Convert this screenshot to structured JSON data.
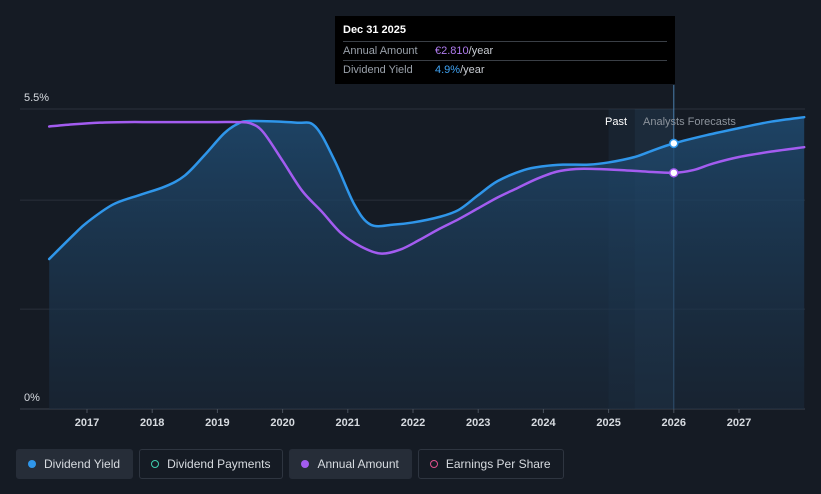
{
  "tooltip": {
    "date": "Dec 31 2025",
    "rows": [
      {
        "label": "Annual Amount",
        "value": "€2.810",
        "unit": "/year"
      },
      {
        "label": "Dividend Yield",
        "value": "4.9%",
        "unit": "/year"
      }
    ]
  },
  "labels": {
    "past": "Past",
    "forecast": "Analysts Forecasts"
  },
  "legend": [
    {
      "label": "Dividend Yield",
      "active": true,
      "color": "#2f96ea"
    },
    {
      "label": "Dividend Payments",
      "active": false,
      "color": "#3fd0b0"
    },
    {
      "label": "Annual Amount",
      "active": true,
      "color": "#a35cf0"
    },
    {
      "label": "Earnings Per Share",
      "active": false,
      "color": "#e0508c"
    }
  ],
  "chart_data": {
    "type": "line",
    "y_tick_labels": [
      "5.5%",
      "0%"
    ],
    "x_tick_labels": [
      "2017",
      "2018",
      "2019",
      "2020",
      "2021",
      "2022",
      "2023",
      "2024",
      "2025",
      "2026",
      "2027"
    ],
    "ylim": [
      0,
      5.5
    ],
    "xlim": [
      2016.4,
      2028.0
    ],
    "forecast_start": 2025.4,
    "highlight_x": 2026.0,
    "gridlines": [
      5.5,
      3.83,
      1.83,
      0
    ],
    "series": [
      {
        "name": "Dividend Yield",
        "color": "#2f96ea",
        "fill": true,
        "points": [
          [
            2016.42,
            2.75
          ],
          [
            2016.8,
            3.2
          ],
          [
            2017.0,
            3.42
          ],
          [
            2017.4,
            3.75
          ],
          [
            2017.8,
            3.92
          ],
          [
            2018.2,
            4.08
          ],
          [
            2018.5,
            4.28
          ],
          [
            2018.8,
            4.65
          ],
          [
            2019.1,
            5.05
          ],
          [
            2019.3,
            5.22
          ],
          [
            2019.5,
            5.28
          ],
          [
            2020.2,
            5.25
          ],
          [
            2020.5,
            5.18
          ],
          [
            2020.8,
            4.55
          ],
          [
            2021.1,
            3.75
          ],
          [
            2021.35,
            3.38
          ],
          [
            2021.7,
            3.38
          ],
          [
            2022.0,
            3.42
          ],
          [
            2022.4,
            3.52
          ],
          [
            2022.7,
            3.65
          ],
          [
            2023.0,
            3.92
          ],
          [
            2023.3,
            4.18
          ],
          [
            2023.7,
            4.38
          ],
          [
            2024.0,
            4.45
          ],
          [
            2024.3,
            4.48
          ],
          [
            2024.7,
            4.48
          ],
          [
            2025.0,
            4.52
          ],
          [
            2025.4,
            4.62
          ],
          [
            2025.7,
            4.75
          ],
          [
            2026.0,
            4.87
          ],
          [
            2026.5,
            5.02
          ],
          [
            2027.0,
            5.15
          ],
          [
            2027.5,
            5.27
          ],
          [
            2028.0,
            5.35
          ]
        ]
      },
      {
        "name": "Annual Amount",
        "color": "#a35cf0",
        "fill": false,
        "points": [
          [
            2016.42,
            5.18
          ],
          [
            2016.8,
            5.22
          ],
          [
            2017.2,
            5.25
          ],
          [
            2017.6,
            5.26
          ],
          [
            2018.0,
            5.26
          ],
          [
            2018.5,
            5.26
          ],
          [
            2019.0,
            5.26
          ],
          [
            2019.3,
            5.26
          ],
          [
            2019.5,
            5.24
          ],
          [
            2019.7,
            5.08
          ],
          [
            2020.0,
            4.55
          ],
          [
            2020.3,
            4.0
          ],
          [
            2020.6,
            3.62
          ],
          [
            2020.9,
            3.22
          ],
          [
            2021.2,
            2.98
          ],
          [
            2021.5,
            2.85
          ],
          [
            2021.8,
            2.92
          ],
          [
            2022.1,
            3.1
          ],
          [
            2022.4,
            3.3
          ],
          [
            2022.7,
            3.48
          ],
          [
            2023.0,
            3.68
          ],
          [
            2023.3,
            3.88
          ],
          [
            2023.6,
            4.05
          ],
          [
            2023.9,
            4.22
          ],
          [
            2024.2,
            4.35
          ],
          [
            2024.5,
            4.4
          ],
          [
            2024.8,
            4.4
          ],
          [
            2025.2,
            4.38
          ],
          [
            2025.6,
            4.35
          ],
          [
            2026.0,
            4.33
          ],
          [
            2026.3,
            4.38
          ],
          [
            2026.6,
            4.5
          ],
          [
            2027.0,
            4.62
          ],
          [
            2027.5,
            4.72
          ],
          [
            2028.0,
            4.8
          ]
        ]
      }
    ]
  }
}
